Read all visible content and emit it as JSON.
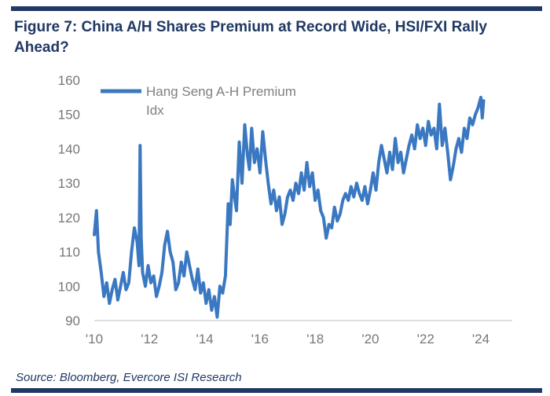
{
  "figure": {
    "title": "Figure 7: China A/H Shares Premium at Record Wide, HSI/FXI Rally Ahead?",
    "source": "Source: Bloomberg, Evercore ISI Research"
  },
  "chart_data": {
    "type": "line",
    "title": "Figure 7: China A/H Shares Premium at Record Wide, HSI/FXI Rally Ahead?",
    "xlabel": "",
    "ylabel": "",
    "xlim": [
      2010,
      2024.6
    ],
    "ylim": [
      90,
      160
    ],
    "yticks": [
      90,
      100,
      110,
      120,
      130,
      140,
      150,
      160
    ],
    "xticks": [
      2010,
      2012,
      2014,
      2016,
      2018,
      2020,
      2022,
      2024
    ],
    "xtick_labels": [
      "'10",
      "'12",
      "'14",
      "'16",
      "'18",
      "'20",
      "'22",
      "'24"
    ],
    "grid": false,
    "legend": {
      "position": "top-left",
      "label_lines": [
        "Hang Seng A-H Premium",
        "Idx"
      ]
    },
    "color": "#3a78c2",
    "series": [
      {
        "name": "Hang Seng A-H Premium Idx",
        "x": [
          2010.0,
          2010.08,
          2010.15,
          2010.25,
          2010.35,
          2010.45,
          2010.55,
          2010.65,
          2010.75,
          2010.85,
          2010.95,
          2011.05,
          2011.15,
          2011.25,
          2011.35,
          2011.45,
          2011.55,
          2011.62,
          2011.66,
          2011.7,
          2011.75,
          2011.85,
          2011.95,
          2012.05,
          2012.15,
          2012.25,
          2012.35,
          2012.45,
          2012.55,
          2012.65,
          2012.75,
          2012.85,
          2012.95,
          2013.05,
          2013.15,
          2013.25,
          2013.35,
          2013.45,
          2013.55,
          2013.65,
          2013.75,
          2013.85,
          2013.95,
          2014.05,
          2014.15,
          2014.25,
          2014.35,
          2014.45,
          2014.55,
          2014.65,
          2014.75,
          2014.85,
          2014.92,
          2015.0,
          2015.08,
          2015.15,
          2015.25,
          2015.35,
          2015.45,
          2015.55,
          2015.62,
          2015.7,
          2015.8,
          2015.9,
          2016.0,
          2016.1,
          2016.2,
          2016.3,
          2016.4,
          2016.5,
          2016.6,
          2016.7,
          2016.8,
          2016.9,
          2017.0,
          2017.1,
          2017.2,
          2017.3,
          2017.4,
          2017.5,
          2017.6,
          2017.7,
          2017.8,
          2017.9,
          2018.0,
          2018.1,
          2018.2,
          2018.3,
          2018.4,
          2018.5,
          2018.6,
          2018.7,
          2018.8,
          2018.9,
          2019.0,
          2019.1,
          2019.2,
          2019.3,
          2019.4,
          2019.5,
          2019.6,
          2019.7,
          2019.8,
          2019.9,
          2020.0,
          2020.1,
          2020.2,
          2020.3,
          2020.4,
          2020.5,
          2020.6,
          2020.7,
          2020.8,
          2020.9,
          2021.0,
          2021.1,
          2021.2,
          2021.3,
          2021.4,
          2021.5,
          2021.6,
          2021.7,
          2021.8,
          2021.9,
          2022.0,
          2022.1,
          2022.2,
          2022.3,
          2022.4,
          2022.5,
          2022.6,
          2022.7,
          2022.8,
          2022.9,
          2023.0,
          2023.1,
          2023.2,
          2023.3,
          2023.4,
          2023.5,
          2023.6,
          2023.7,
          2023.8,
          2023.9,
          2024.0,
          2024.05,
          2024.1
        ],
        "values": [
          115,
          122,
          110,
          104,
          97,
          101,
          95,
          99,
          102,
          96,
          100,
          104,
          99,
          101,
          110,
          117,
          113,
          106,
          141,
          114,
          104,
          100,
          106,
          101,
          103,
          97,
          100,
          104,
          112,
          116,
          110,
          107,
          99,
          101,
          107,
          103,
          110,
          106,
          102,
          99,
          105,
          98,
          101,
          95,
          99,
          93,
          97,
          91,
          100,
          98,
          103,
          124,
          118,
          131,
          126,
          122,
          142,
          130,
          147,
          138,
          134,
          146,
          136,
          140,
          133,
          145,
          137,
          130,
          124,
          128,
          122,
          126,
          118,
          121,
          126,
          128,
          125,
          130,
          127,
          133,
          128,
          136,
          129,
          133,
          125,
          128,
          122,
          120,
          114,
          118,
          117,
          123,
          119,
          121,
          125,
          127,
          125,
          129,
          126,
          130,
          127,
          125,
          129,
          124,
          128,
          133,
          128,
          136,
          141,
          137,
          133,
          139,
          134,
          143,
          136,
          139,
          133,
          137,
          141,
          144,
          140,
          147,
          143,
          146,
          141,
          148,
          144,
          146,
          140,
          153,
          141,
          146,
          139,
          131,
          135,
          140,
          143,
          139,
          146,
          143,
          149,
          147,
          150,
          152,
          155,
          149,
          154
        ]
      }
    ]
  }
}
